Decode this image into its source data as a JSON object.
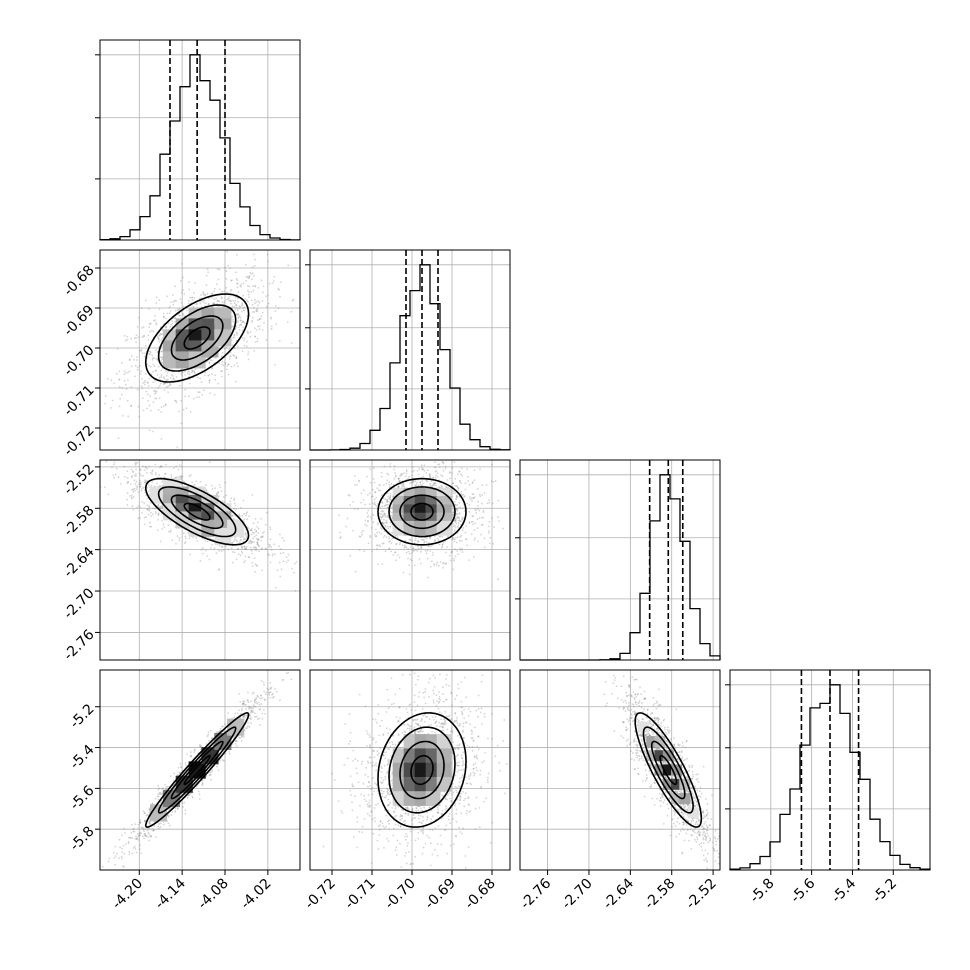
{
  "chart_data": {
    "type": "corner",
    "title": "",
    "parameters": [
      {
        "index": 0,
        "range": [
          -4.255,
          -3.975
        ],
        "ticks": [
          "-4.20",
          "-4.14",
          "-4.08",
          "-4.02"
        ],
        "tick_values": [
          -4.2,
          -4.14,
          -4.08,
          -4.02
        ],
        "quantiles": [
          -4.157,
          -4.119,
          -4.08
        ],
        "median": -4.119,
        "sigma": 0.036
      },
      {
        "index": 1,
        "range": [
          -0.7255,
          -0.6755
        ],
        "ticks": [
          "-0.72",
          "-0.71",
          "-0.70",
          "-0.69",
          "-0.68"
        ],
        "tick_values": [
          -0.72,
          -0.71,
          -0.7,
          -0.69,
          -0.68
        ],
        "quantiles": [
          -0.7015,
          -0.6975,
          -0.6935
        ],
        "median": -0.6975,
        "sigma": 0.0055
      },
      {
        "index": 2,
        "range": [
          -2.8,
          -2.51
        ],
        "ticks": [
          "-2.76",
          "-2.70",
          "-2.64",
          "-2.58",
          "-2.52"
        ],
        "tick_values": [
          -2.76,
          -2.7,
          -2.64,
          -2.58,
          -2.52
        ],
        "quantiles": [
          -2.612,
          -2.585,
          -2.564
        ],
        "median": -2.585,
        "sigma": 0.024
      },
      {
        "index": 3,
        "range": [
          -6.0,
          -5.02
        ],
        "ticks": [
          "-5.8",
          "-5.6",
          "-5.4",
          "-5.2"
        ],
        "tick_values": [
          -5.8,
          -5.6,
          -5.4,
          -5.2
        ],
        "quantiles": [
          -5.65,
          -5.51,
          -5.37
        ],
        "median": -5.51,
        "sigma": 0.14
      }
    ],
    "row_labels": [
      {
        "row": 1,
        "ticks": [
          "-0.68",
          "-0.69",
          "-0.70",
          "-0.71",
          "-0.72"
        ],
        "tick_values": [
          -0.68,
          -0.69,
          -0.7,
          -0.71,
          -0.72
        ]
      },
      {
        "row": 2,
        "ticks": [
          "-2.52",
          "-2.58",
          "-2.64",
          "-2.70",
          "-2.76"
        ],
        "tick_values": [
          -2.52,
          -2.58,
          -2.64,
          -2.7,
          -2.76
        ]
      },
      {
        "row": 3,
        "ticks": [
          "-5.2",
          "-5.4",
          "-5.6",
          "-5.8"
        ],
        "tick_values": [
          -5.2,
          -5.4,
          -5.6,
          -5.8
        ]
      }
    ],
    "correlations": {
      "0-1": 0.55,
      "0-2": -0.72,
      "1-2": 0.0,
      "0-3": 0.97,
      "1-3": 0.15,
      "2-3": -0.85
    },
    "histogram_bins": 20,
    "grid": true,
    "quantile_lines": "dashed"
  }
}
